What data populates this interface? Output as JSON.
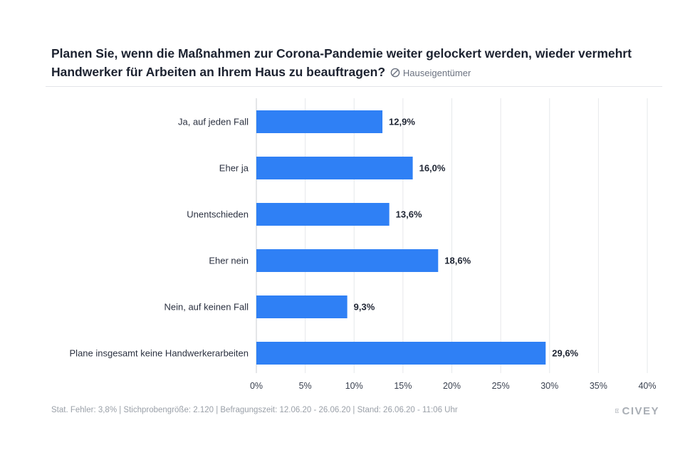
{
  "header": {
    "title": "Planen Sie, wenn die Maßnahmen zur Corona-Pandemie weiter gelockert werden, wieder vermehrt Handwerker für Arbeiten an Ihrem Haus zu beauftragen?",
    "subtitle": "Hauseigentümer"
  },
  "chart_data": {
    "type": "bar",
    "orientation": "horizontal",
    "categories": [
      "Ja, auf jeden Fall",
      "Eher ja",
      "Unentschieden",
      "Eher nein",
      "Nein, auf keinen Fall",
      "Plane insgesamt keine Handwerkerarbeiten"
    ],
    "values": [
      12.9,
      16.0,
      13.6,
      18.6,
      9.3,
      29.6
    ],
    "value_labels": [
      "12,9%",
      "16,0%",
      "13,6%",
      "18,6%",
      "9,3%",
      "29,6%"
    ],
    "xlim": [
      0,
      40
    ],
    "ticks": [
      0,
      5,
      10,
      15,
      20,
      25,
      30,
      35,
      40
    ],
    "tick_labels": [
      "0%",
      "5%",
      "10%",
      "15%",
      "20%",
      "25%",
      "30%",
      "35%",
      "40%"
    ],
    "grid": true,
    "bar_color": "#2f80f5"
  },
  "footer": {
    "text": "Stat. Fehler: 3,8% | Stichprobengröße: 2.120 | Befragungszeit: 12.06.20 - 26.06.20 | Stand: 26.06.20 - 11:06 Uhr"
  },
  "logo": {
    "text": "CIVEY",
    "icon": "civey-logo-icon"
  }
}
